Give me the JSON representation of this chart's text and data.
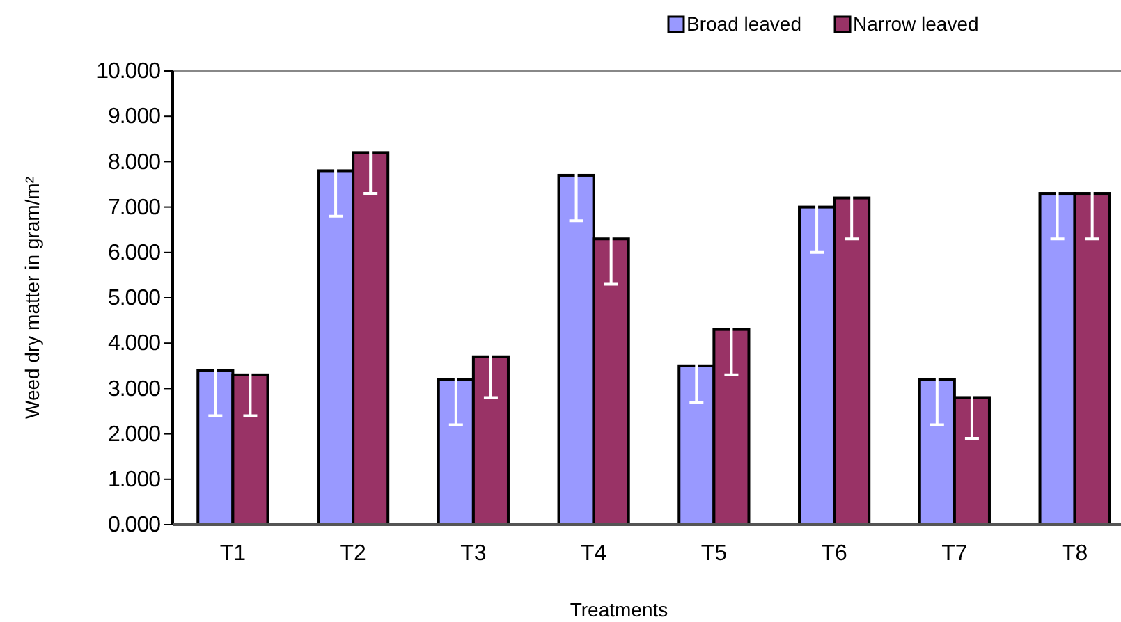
{
  "chart_data": {
    "type": "bar",
    "xlabel": "Treatments",
    "ylabel": "Weed dry matter in gram/m²",
    "categories": [
      "T1",
      "T2",
      "T3",
      "T4",
      "T5",
      "T6",
      "T7",
      "T8"
    ],
    "series": [
      {
        "name": "Broad leaved",
        "color": "#9999ff",
        "values": [
          3.4,
          7.8,
          3.2,
          7.7,
          3.5,
          7.0,
          3.2,
          7.3
        ],
        "errors": [
          1.0,
          1.0,
          1.0,
          1.0,
          0.8,
          1.0,
          1.0,
          1.0
        ]
      },
      {
        "name": "Narrow leaved",
        "color": "#993366",
        "values": [
          3.3,
          8.2,
          3.7,
          6.3,
          4.3,
          7.2,
          2.8,
          7.3
        ],
        "errors": [
          0.9,
          0.9,
          0.9,
          1.0,
          1.0,
          0.9,
          0.9,
          1.0
        ]
      }
    ],
    "ylim": [
      0,
      10
    ],
    "yticks": [
      {
        "value": 0,
        "label": "0.000"
      },
      {
        "value": 1,
        "label": "1.000"
      },
      {
        "value": 2,
        "label": "2.000"
      },
      {
        "value": 3,
        "label": "3.000"
      },
      {
        "value": 4,
        "label": "4.000"
      },
      {
        "value": 5,
        "label": "5.000"
      },
      {
        "value": 6,
        "label": "6.000"
      },
      {
        "value": 7,
        "label": "7.000"
      },
      {
        "value": 8,
        "label": "8.000"
      },
      {
        "value": 9,
        "label": "9.000"
      },
      {
        "value": 10,
        "label": "10.000"
      }
    ],
    "grid": false,
    "legend": "top right"
  }
}
